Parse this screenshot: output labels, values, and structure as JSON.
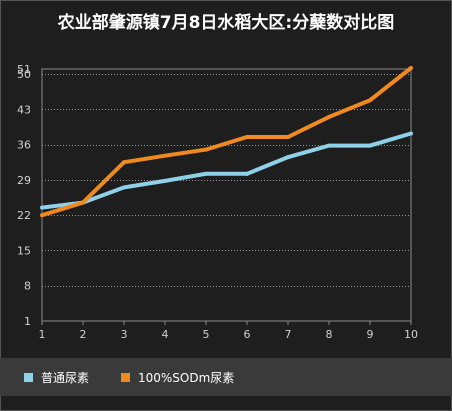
{
  "chart_data": {
    "type": "line",
    "title": "农业部肇源镇7月8日水稻大区:分蘖数对比图",
    "x": [
      1,
      2,
      3,
      4,
      5,
      6,
      7,
      8,
      9,
      10
    ],
    "x_tick_labels": [
      "1",
      "2",
      "3",
      "4",
      "5",
      "6",
      "7",
      "8",
      "9",
      "10"
    ],
    "y_tick_labels": [
      "1",
      "8",
      "15",
      "22",
      "29",
      "36",
      "43",
      "50",
      "51"
    ],
    "ylim": [
      1,
      51
    ],
    "grid": true,
    "legend_position": "bottom",
    "series": [
      {
        "name": "普通尿素",
        "color": "#8fd1e8",
        "values": [
          23.5,
          24.5,
          27.5,
          28.8,
          30.2,
          30.2,
          33.5,
          35.8,
          35.8,
          38.2
        ]
      },
      {
        "name": "100%SODm尿素",
        "color": "#f08a1e",
        "values": [
          22,
          24.5,
          32.5,
          33.8,
          35,
          37.5,
          37.5,
          41.5,
          44.8,
          51.2
        ]
      }
    ]
  }
}
